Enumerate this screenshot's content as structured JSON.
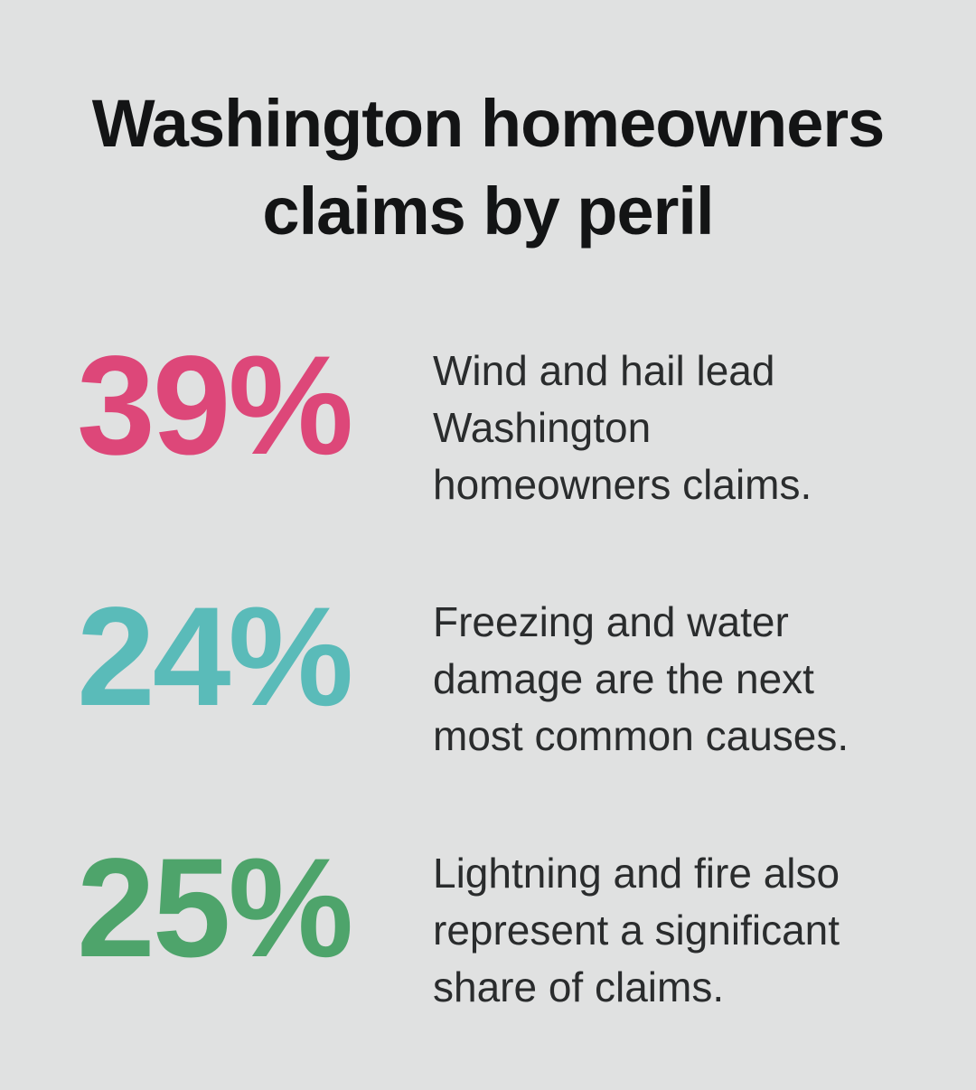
{
  "page": {
    "background_color": "#e0e1e1",
    "title_color": "#131415",
    "body_text_color": "#2a2c2d"
  },
  "title": "Washington homeowners\nclaims by peril",
  "stats": [
    {
      "value": "39%",
      "color": "#dd4779",
      "description": "Wind and hail lead\nWashington\nhomeowners claims."
    },
    {
      "value": "24%",
      "color": "#5abbb9",
      "description": "Freezing and water\ndamage are the next\nmost common causes."
    },
    {
      "value": "25%",
      "color": "#4ea46b",
      "description": "Lightning and fire also\nrepresent a significant\nshare of claims."
    }
  ],
  "chart_data": {
    "type": "table",
    "title": "Washington homeowners claims by peril",
    "categories": [
      "Wind and hail",
      "Freezing and water damage",
      "Lightning and fire"
    ],
    "values": [
      39,
      24,
      25
    ],
    "unit": "%",
    "series_colors": [
      "#dd4779",
      "#5abbb9",
      "#4ea46b"
    ],
    "annotations": [
      "Wind and hail lead Washington homeowners claims.",
      "Freezing and water damage are the next most common causes.",
      "Lightning and fire also represent a significant share of claims."
    ]
  }
}
